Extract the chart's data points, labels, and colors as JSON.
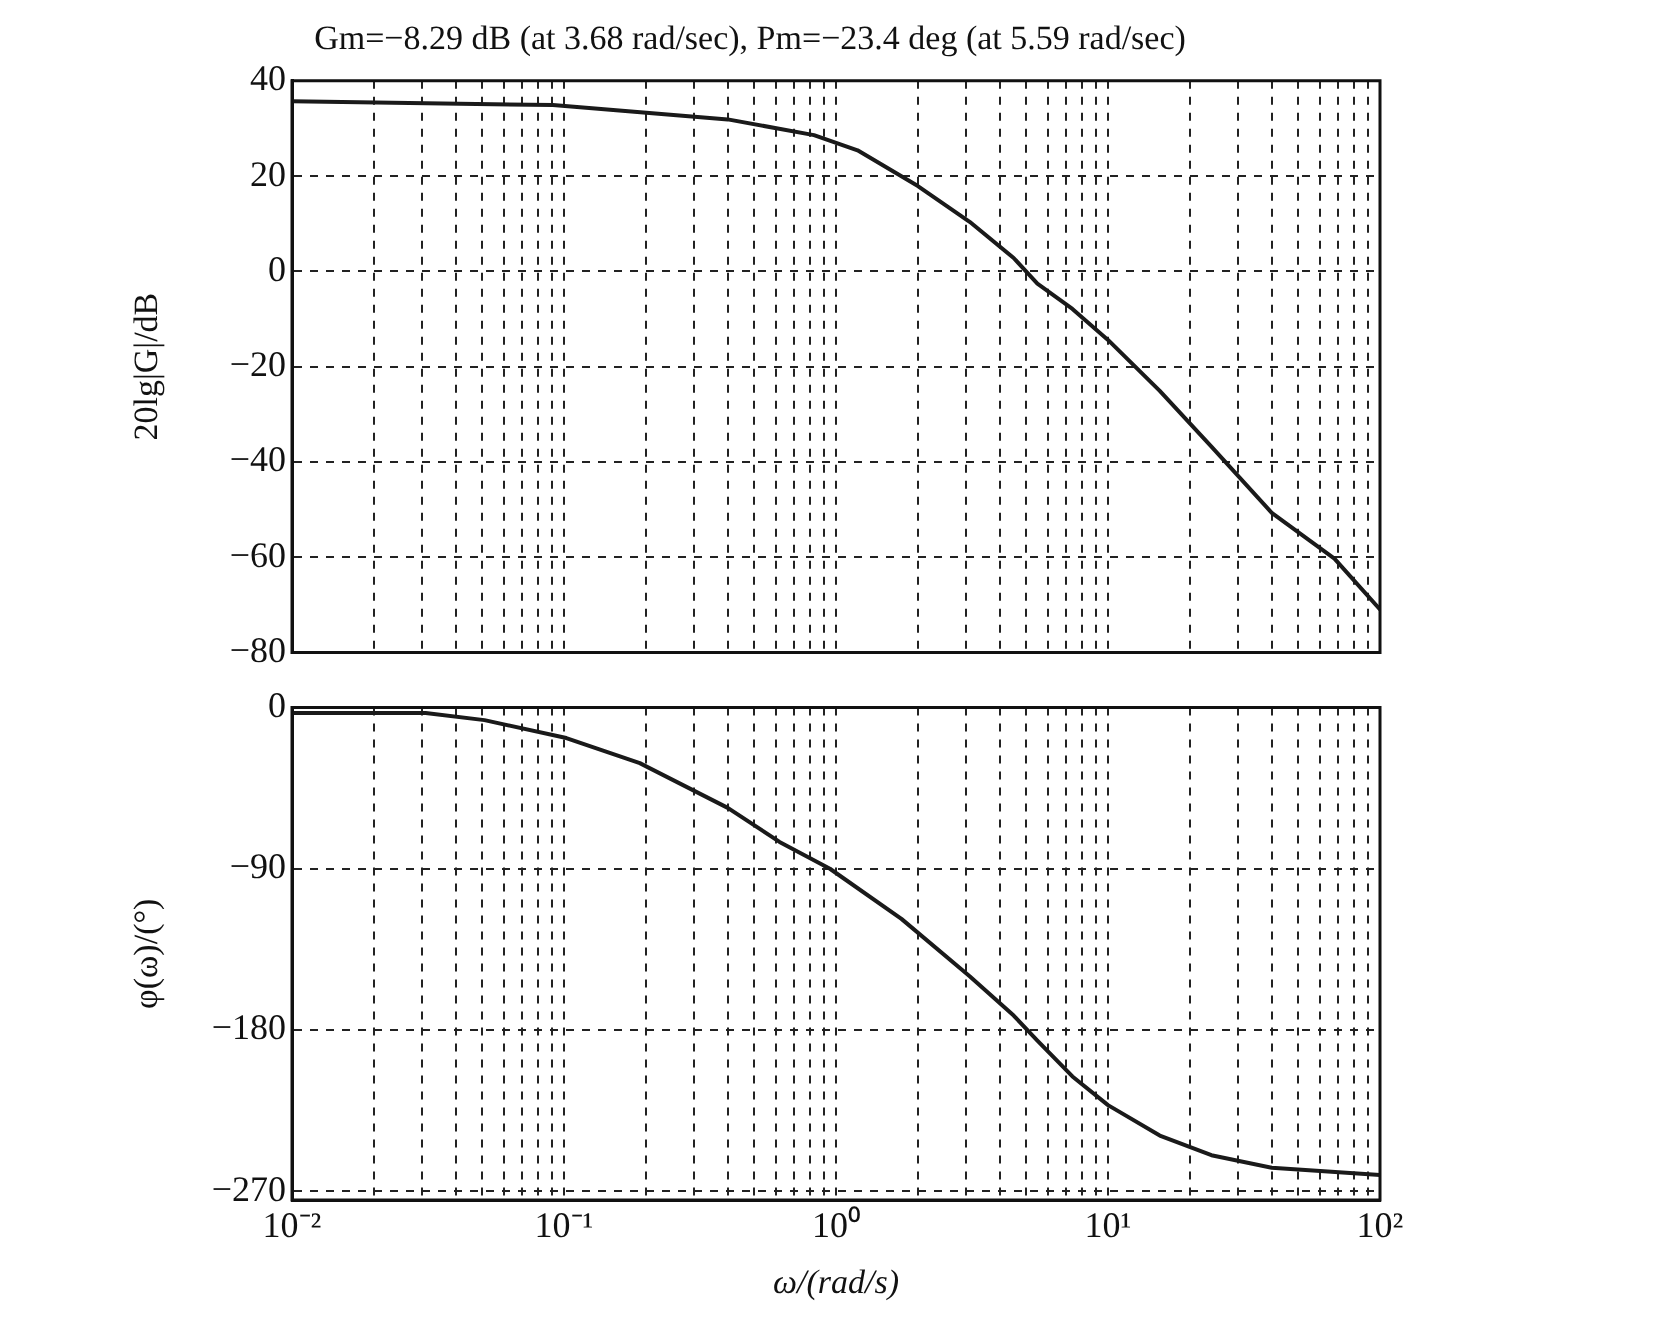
{
  "chart_data": [
    {
      "type": "line",
      "title": "Gm=−8.29 dB (at 3.68 rad/sec), Pm=−23.4 deg (at 5.59 rad/sec)",
      "ylabel": "20lg|G|/dB",
      "log": "x",
      "grid": true,
      "legend": false,
      "tick_labels": "y",
      "marker": "none",
      "line_style": "solid",
      "xlim": [
        0.01,
        100
      ],
      "ylim": [
        -80,
        40
      ],
      "yticks": [
        -80,
        -60,
        -40,
        -20,
        0,
        20,
        40
      ],
      "xticks": [
        {
          "value": 0.01,
          "label": null
        },
        {
          "value": 0.02,
          "label": null
        },
        {
          "value": 0.03,
          "label": null
        },
        {
          "value": 0.04,
          "label": null
        },
        {
          "value": 0.05,
          "label": null
        },
        {
          "value": 0.06,
          "label": null
        },
        {
          "value": 0.07,
          "label": null
        },
        {
          "value": 0.08,
          "label": null
        },
        {
          "value": 0.09,
          "label": null
        },
        {
          "value": 0.1,
          "label": null
        },
        {
          "value": 0.2,
          "label": null
        },
        {
          "value": 0.3,
          "label": null
        },
        {
          "value": 0.4,
          "label": null
        },
        {
          "value": 0.5,
          "label": null
        },
        {
          "value": 0.6,
          "label": null
        },
        {
          "value": 0.7,
          "label": null
        },
        {
          "value": 0.8,
          "label": null
        },
        {
          "value": 0.9,
          "label": null
        },
        {
          "value": 1,
          "label": null
        },
        {
          "value": 2,
          "label": null
        },
        {
          "value": 3,
          "label": null
        },
        {
          "value": 4,
          "label": null
        },
        {
          "value": 5,
          "label": null
        },
        {
          "value": 6,
          "label": null
        },
        {
          "value": 7,
          "label": null
        },
        {
          "value": 8,
          "label": null
        },
        {
          "value": 9,
          "label": null
        },
        {
          "value": 10,
          "label": null
        },
        {
          "value": 20,
          "label": null
        },
        {
          "value": 30,
          "label": null
        },
        {
          "value": 40,
          "label": null
        },
        {
          "value": 50,
          "label": null
        },
        {
          "value": 60,
          "label": null
        },
        {
          "value": 70,
          "label": null
        },
        {
          "value": 80,
          "label": null
        },
        {
          "value": 90,
          "label": null
        },
        {
          "value": 100,
          "label": null
        }
      ],
      "series": [
        {
          "color": "#1a1a1a",
          "x": [
            0.01,
            0.091,
            0.4,
            0.83,
            1.2,
            2.0,
            3.1,
            4.5,
            5.5,
            7.4,
            10,
            15.5,
            24,
            40,
            68,
            100
          ],
          "values": [
            35.7,
            34.9,
            31.9,
            28.6,
            25.4,
            17.9,
            10.4,
            2.8,
            -2.6,
            -7.9,
            -14.4,
            -25.1,
            -36.8,
            -50.7,
            -60.3,
            -71
          ]
        }
      ]
    },
    {
      "type": "line",
      "xlabel": "ω/(rad/s)",
      "ylabel": "φ(ω)/(°)",
      "log": "x",
      "grid": true,
      "legend": false,
      "marker": "none",
      "line_style": "solid",
      "xlim": [
        0.01,
        100
      ],
      "ylim": [
        -275,
        0
      ],
      "yticks": [
        -270,
        -180,
        -90,
        0
      ],
      "xticks": [
        {
          "value": 0.01,
          "label": "10⁻²"
        },
        {
          "value": 0.02,
          "label": null
        },
        {
          "value": 0.03,
          "label": null
        },
        {
          "value": 0.04,
          "label": null
        },
        {
          "value": 0.05,
          "label": null
        },
        {
          "value": 0.06,
          "label": null
        },
        {
          "value": 0.07,
          "label": null
        },
        {
          "value": 0.08,
          "label": null
        },
        {
          "value": 0.09,
          "label": null
        },
        {
          "value": 0.1,
          "label": "10⁻¹"
        },
        {
          "value": 0.2,
          "label": null
        },
        {
          "value": 0.3,
          "label": null
        },
        {
          "value": 0.4,
          "label": null
        },
        {
          "value": 0.5,
          "label": null
        },
        {
          "value": 0.6,
          "label": null
        },
        {
          "value": 0.7,
          "label": null
        },
        {
          "value": 0.8,
          "label": null
        },
        {
          "value": 0.9,
          "label": null
        },
        {
          "value": 1,
          "label": "10⁰"
        },
        {
          "value": 2,
          "label": null
        },
        {
          "value": 3,
          "label": null
        },
        {
          "value": 4,
          "label": null
        },
        {
          "value": 5,
          "label": null
        },
        {
          "value": 6,
          "label": null
        },
        {
          "value": 7,
          "label": null
        },
        {
          "value": 8,
          "label": null
        },
        {
          "value": 9,
          "label": null
        },
        {
          "value": 10,
          "label": "10¹"
        },
        {
          "value": 20,
          "label": null
        },
        {
          "value": 30,
          "label": null
        },
        {
          "value": 40,
          "label": null
        },
        {
          "value": 50,
          "label": null
        },
        {
          "value": 60,
          "label": null
        },
        {
          "value": 70,
          "label": null
        },
        {
          "value": 80,
          "label": null
        },
        {
          "value": 90,
          "label": null
        },
        {
          "value": 100,
          "label": "10²"
        }
      ],
      "series": [
        {
          "color": "#1a1a1a",
          "x": [
            0.01,
            0.031,
            0.051,
            0.102,
            0.19,
            0.4,
            0.62,
            0.95,
            1.74,
            3.1,
            4.5,
            5.5,
            7.4,
            10,
            15.5,
            24,
            40,
            100
          ],
          "values": [
            -3,
            -3,
            -7,
            -17,
            -31,
            -56,
            -75,
            -90,
            -118,
            -150,
            -172,
            -186,
            -206,
            -222,
            -239,
            -250,
            -257,
            -261
          ]
        }
      ]
    }
  ]
}
